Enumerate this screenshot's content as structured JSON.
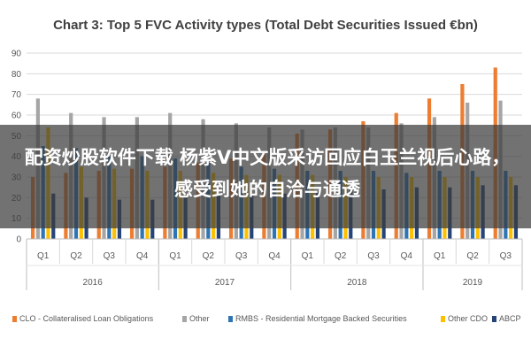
{
  "chart_data": {
    "type": "bar",
    "title": "Chart 3: Top 5 FVC Activity types (Total Debt Securities Issued €bn)",
    "ylim": [
      0,
      90
    ],
    "yticks": [
      0,
      10,
      20,
      30,
      40,
      50,
      60,
      70,
      80,
      90
    ],
    "categories": [
      "Q1",
      "Q2",
      "Q3",
      "Q4",
      "Q1",
      "Q2",
      "Q3",
      "Q4",
      "Q1",
      "Q2",
      "Q3",
      "Q4",
      "Q1",
      "Q2",
      "Q3"
    ],
    "groups": [
      {
        "label": "2016",
        "count": 4
      },
      {
        "label": "2017",
        "count": 4
      },
      {
        "label": "2018",
        "count": 4
      },
      {
        "label": "2019",
        "count": 3
      }
    ],
    "legend_position": "bottom",
    "series": [
      {
        "name": "CLO - Collateralised Loan Obligations",
        "color": "#ed7d31",
        "values": [
          30,
          32,
          33,
          34,
          35,
          37,
          39,
          41,
          51,
          53,
          57,
          61,
          68,
          75,
          83
        ]
      },
      {
        "name": "Other",
        "color": "#a5a5a5",
        "values": [
          68,
          61,
          59,
          59,
          61,
          58,
          56,
          54,
          53,
          54,
          54,
          56,
          59,
          66,
          67
        ]
      },
      {
        "name": "RMBS - Residential Mortgage Backed Securities",
        "color": "#2e75b6",
        "values": [
          45,
          44,
          40,
          40,
          39,
          37,
          35,
          34,
          33,
          33,
          33,
          32,
          33,
          33,
          33
        ]
      },
      {
        "name": "Other CDO",
        "color": "#ffc000",
        "values": [
          54,
          35,
          34,
          33,
          33,
          32,
          31,
          31,
          31,
          30,
          30,
          30,
          30,
          30,
          30
        ]
      },
      {
        "name": "ABCP",
        "color": "#264478",
        "values": [
          22,
          20,
          19,
          19,
          20,
          21,
          22,
          22,
          23,
          24,
          24,
          25,
          25,
          26,
          26
        ]
      }
    ]
  },
  "overlay": {
    "text": "配资炒股软件下载 杨紫V中文版采访回应白玉兰视后心路，感受到她的自洽与通透"
  }
}
